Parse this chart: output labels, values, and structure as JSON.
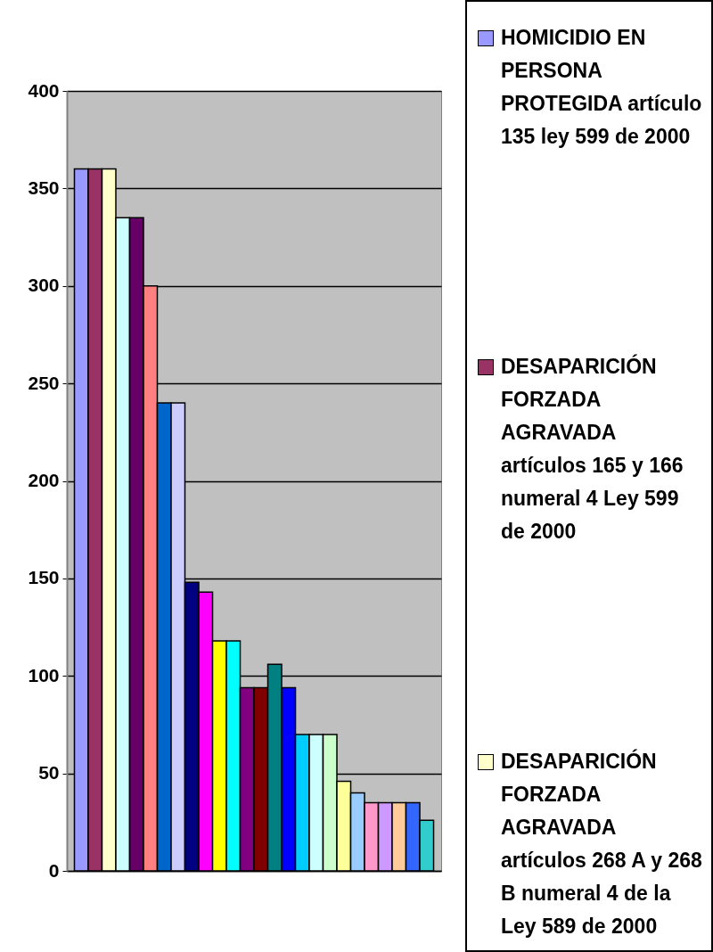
{
  "chart_data": {
    "type": "bar",
    "categories": [
      null
    ],
    "ylim": [
      0,
      400
    ],
    "yticks": [
      0,
      50,
      100,
      150,
      200,
      250,
      300,
      350,
      400
    ],
    "grid": "y",
    "legend": "right",
    "tick_labels": "y",
    "series": [
      {
        "name": "HOMICIDIO EN PERSONA PROTEGIDA artículo 135 ley 599 de 2000",
        "color": "#9999ff",
        "values": [
          360
        ]
      },
      {
        "name": "DESAPARICIÓN FORZADA AGRAVADA artículos 165 y 166 numeral 4 Ley 599 de 2000",
        "color": "#993366",
        "values": [
          360
        ]
      },
      {
        "name": "DESAPARICIÓN FORZADA AGRAVADA artículos 268 A y 268 B numeral 4 de la Ley 589 de 2000",
        "color": "#ffffcc",
        "values": [
          360
        ]
      },
      {
        "color": "#ccffff",
        "values": [
          335
        ]
      },
      {
        "color": "#660066",
        "values": [
          335
        ]
      },
      {
        "color": "#ff8080",
        "values": [
          300
        ]
      },
      {
        "color": "#0066cc",
        "values": [
          240
        ]
      },
      {
        "color": "#ccccff",
        "values": [
          240
        ]
      },
      {
        "color": "#000080",
        "values": [
          148
        ]
      },
      {
        "color": "#ff00ff",
        "values": [
          143
        ]
      },
      {
        "color": "#ffff00",
        "values": [
          118
        ]
      },
      {
        "color": "#00ffff",
        "values": [
          118
        ]
      },
      {
        "color": "#800080",
        "values": [
          94
        ]
      },
      {
        "color": "#800000",
        "values": [
          94
        ]
      },
      {
        "color": "#008080",
        "values": [
          106
        ]
      },
      {
        "color": "#0000ff",
        "values": [
          94
        ]
      },
      {
        "color": "#00ccff",
        "values": [
          70
        ]
      },
      {
        "color": "#ccfffe",
        "values": [
          70
        ]
      },
      {
        "color": "#ccffcc",
        "values": [
          70
        ]
      },
      {
        "color": "#ffff99",
        "values": [
          46
        ]
      },
      {
        "color": "#99ccff",
        "values": [
          40
        ]
      },
      {
        "color": "#ff99cc",
        "values": [
          35
        ]
      },
      {
        "color": "#cc99ff",
        "values": [
          35
        ]
      },
      {
        "color": "#ffcc99",
        "values": [
          35
        ]
      },
      {
        "color": "#3366ff",
        "values": [
          35
        ]
      },
      {
        "color": "#33cccc",
        "values": [
          26
        ]
      }
    ]
  }
}
